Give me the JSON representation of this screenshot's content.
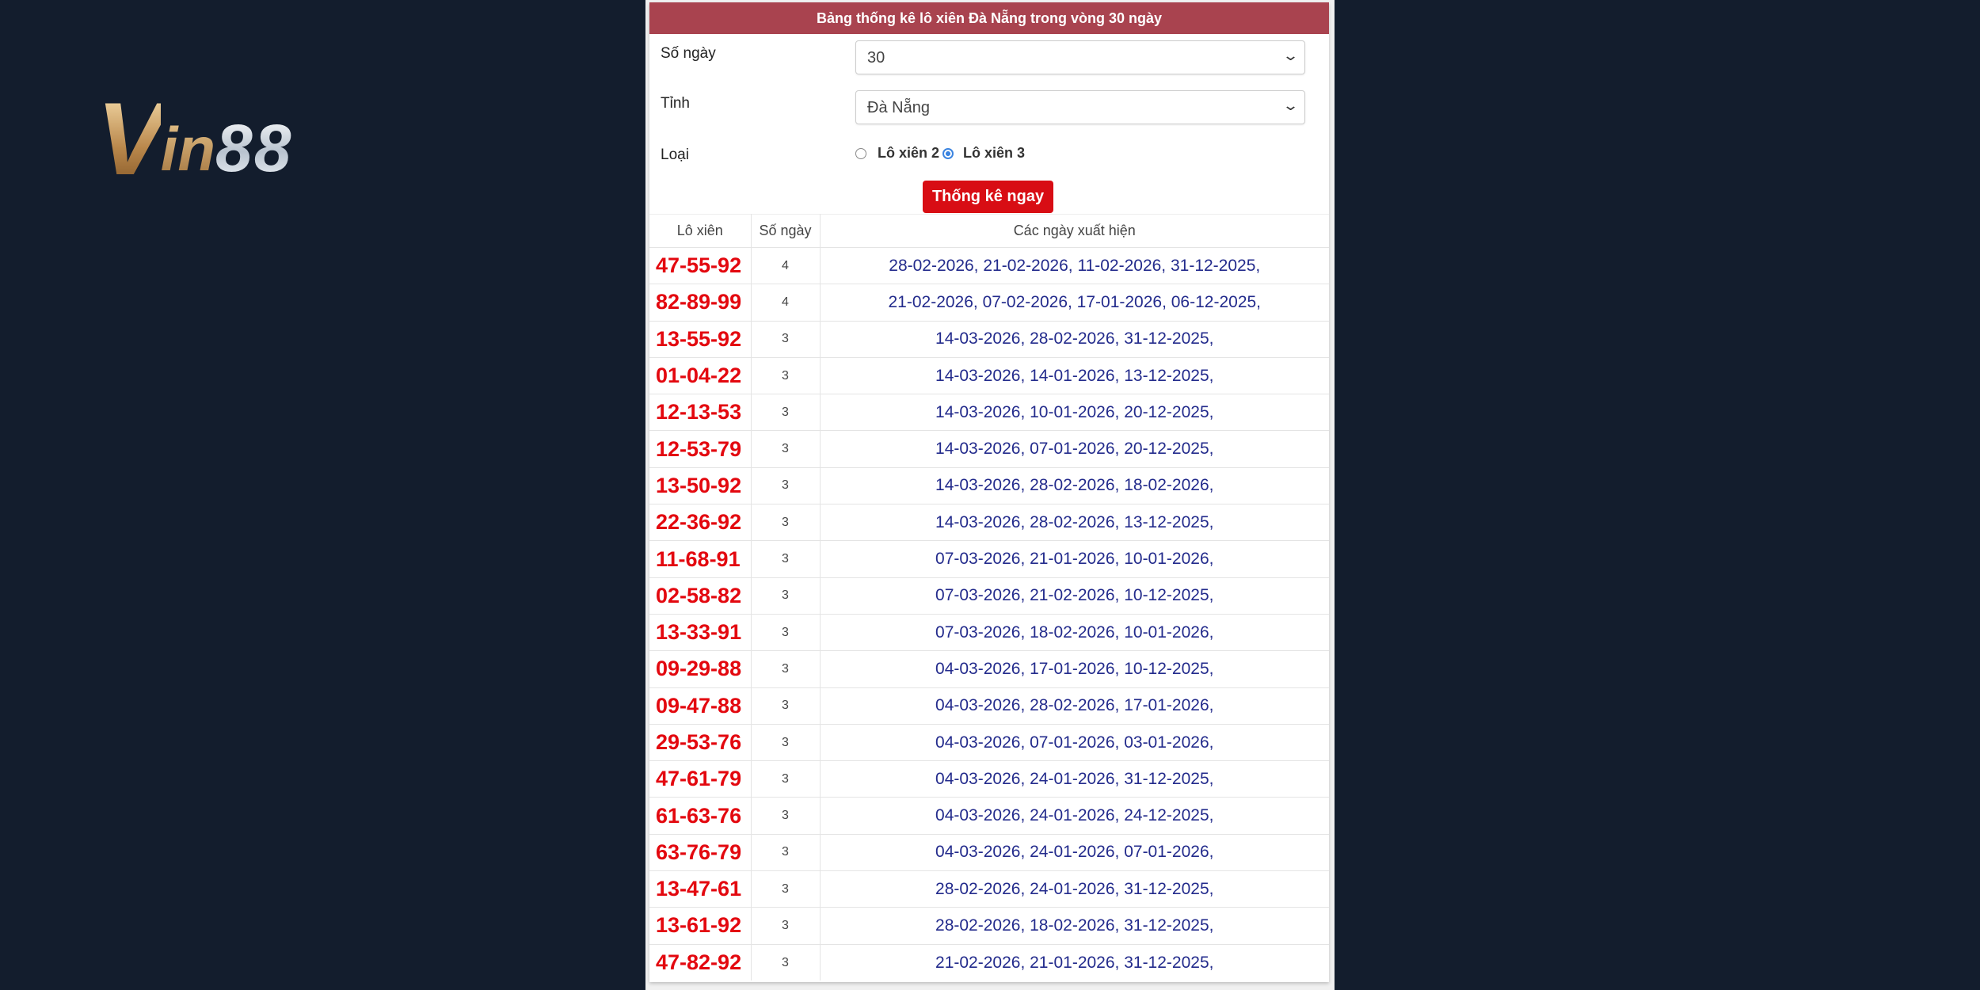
{
  "logo": {
    "text": "Vin88"
  },
  "header": {
    "title": "Bảng thống kê lô xiên Đà Nẵng trong vòng 30 ngày"
  },
  "form": {
    "days_label": "Số ngày",
    "days_value": "30",
    "province_label": "Tỉnh",
    "province_value": "Đà Nẵng",
    "type_label": "Loại",
    "type_options": [
      {
        "label": "Lô xiên 2",
        "selected": false
      },
      {
        "label": "Lô xiên 3",
        "selected": true
      }
    ],
    "submit_label": "Thống kê ngay"
  },
  "table": {
    "headers": [
      "Lô xiên",
      "Số ngày",
      "Các ngày xuất hiện"
    ],
    "rows": [
      {
        "combo": "47-55-92",
        "count": "4",
        "dates": "28-02-2026, 21-02-2026, 11-02-2026, 31-12-2025,"
      },
      {
        "combo": "82-89-99",
        "count": "4",
        "dates": "21-02-2026, 07-02-2026, 17-01-2026, 06-12-2025,"
      },
      {
        "combo": "13-55-92",
        "count": "3",
        "dates": "14-03-2026, 28-02-2026, 31-12-2025,"
      },
      {
        "combo": "01-04-22",
        "count": "3",
        "dates": "14-03-2026, 14-01-2026, 13-12-2025,"
      },
      {
        "combo": "12-13-53",
        "count": "3",
        "dates": "14-03-2026, 10-01-2026, 20-12-2025,"
      },
      {
        "combo": "12-53-79",
        "count": "3",
        "dates": "14-03-2026, 07-01-2026, 20-12-2025,"
      },
      {
        "combo": "13-50-92",
        "count": "3",
        "dates": "14-03-2026, 28-02-2026, 18-02-2026,"
      },
      {
        "combo": "22-36-92",
        "count": "3",
        "dates": "14-03-2026, 28-02-2026, 13-12-2025,"
      },
      {
        "combo": "11-68-91",
        "count": "3",
        "dates": "07-03-2026, 21-01-2026, 10-01-2026,"
      },
      {
        "combo": "02-58-82",
        "count": "3",
        "dates": "07-03-2026, 21-02-2026, 10-12-2025,"
      },
      {
        "combo": "13-33-91",
        "count": "3",
        "dates": "07-03-2026, 18-02-2026, 10-01-2026,"
      },
      {
        "combo": "09-29-88",
        "count": "3",
        "dates": "04-03-2026, 17-01-2026, 10-12-2025,"
      },
      {
        "combo": "09-47-88",
        "count": "3",
        "dates": "04-03-2026, 28-02-2026, 17-01-2026,"
      },
      {
        "combo": "29-53-76",
        "count": "3",
        "dates": "04-03-2026, 07-01-2026, 03-01-2026,"
      },
      {
        "combo": "47-61-79",
        "count": "3",
        "dates": "04-03-2026, 24-01-2026, 31-12-2025,"
      },
      {
        "combo": "61-63-76",
        "count": "3",
        "dates": "04-03-2026, 24-01-2026, 24-12-2025,"
      },
      {
        "combo": "63-76-79",
        "count": "3",
        "dates": "04-03-2026, 24-01-2026, 07-01-2026,"
      },
      {
        "combo": "13-47-61",
        "count": "3",
        "dates": "28-02-2026, 24-01-2026, 31-12-2025,"
      },
      {
        "combo": "13-61-92",
        "count": "3",
        "dates": "28-02-2026, 18-02-2026, 31-12-2025,"
      },
      {
        "combo": "47-82-92",
        "count": "3",
        "dates": "21-02-2026, 21-01-2026, 31-12-2025,"
      }
    ]
  },
  "colors": {
    "header_bg": "#a9434f",
    "button_bg": "#d80d14",
    "combo_text": "#e3080f",
    "date_text": "#232b8c",
    "page_bg": "#131d2d"
  }
}
